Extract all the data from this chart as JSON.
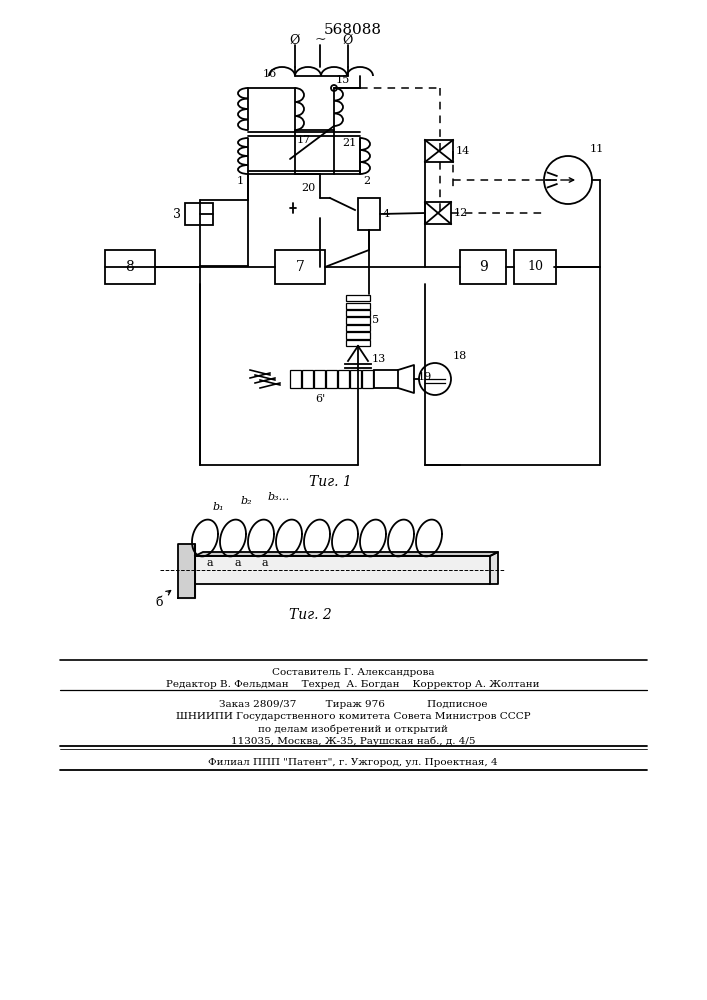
{
  "title": "568088",
  "bg_color": "#ffffff",
  "fig1_caption": "Τиг. 1",
  "fig2_caption": "Τиг. 2",
  "footer1": "Составитель Г. Александрова",
  "footer2": "Редактор В. Фельдман    Техред  А. Богдан    Корректор А. Жолтани",
  "footer3": "Заказ 2809/37         Тираж 976             Подписное",
  "footer4": "ШНИИПИ Государственного комитета Совета Министров СССР",
  "footer5": "по делам изобретений и открытий",
  "footer6": "113035, Москва, Ж-35, Раушская наб., д. 4/5",
  "footer7": "Филиал ППП \"Патент\", г. Ужгород, ул. Проектная, 4"
}
